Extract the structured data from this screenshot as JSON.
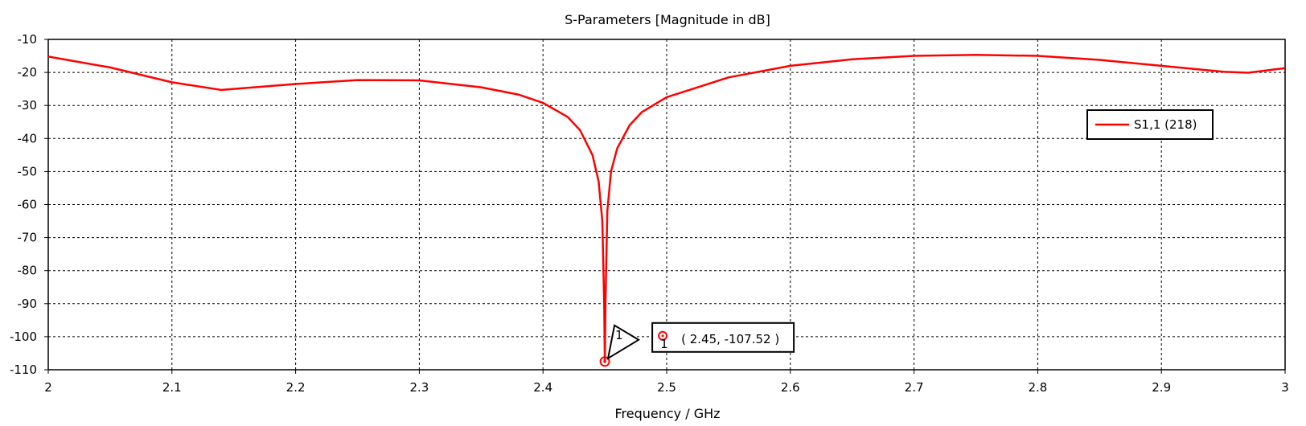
{
  "chart_data": {
    "type": "line",
    "title": "S-Parameters [Magnitude in dB]",
    "xlabel": "Frequency / GHz",
    "ylabel": "",
    "xlim": [
      2,
      3
    ],
    "ylim": [
      -110,
      -10
    ],
    "xticks": [
      "2",
      "2.1",
      "2.2",
      "2.3",
      "2.4",
      "2.5",
      "2.6",
      "2.7",
      "2.8",
      "2.9",
      "3"
    ],
    "yticks": [
      "-10",
      "-20",
      "-30",
      "-40",
      "-50",
      "-60",
      "-70",
      "-80",
      "-90",
      "-100",
      "-110"
    ],
    "grid": true,
    "legend_position": "right",
    "series": [
      {
        "name": "S1,1 (218)",
        "color": "#ff0000",
        "x": [
          2.0,
          2.05,
          2.1,
          2.14,
          2.2,
          2.25,
          2.3,
          2.35,
          2.38,
          2.4,
          2.42,
          2.43,
          2.44,
          2.445,
          2.448,
          2.4495,
          2.45,
          2.4505,
          2.452,
          2.455,
          2.46,
          2.47,
          2.48,
          2.5,
          2.55,
          2.6,
          2.65,
          2.7,
          2.75,
          2.8,
          2.85,
          2.9,
          2.95,
          2.97,
          3.0
        ],
        "y": [
          -15.2,
          -18.5,
          -23.0,
          -25.3,
          -23.5,
          -22.3,
          -22.4,
          -24.5,
          -26.7,
          -29.2,
          -33.5,
          -37.5,
          -45.0,
          -53.0,
          -65.0,
          -90.0,
          -107.52,
          -90.0,
          -62.0,
          -50.0,
          -43.0,
          -36.0,
          -32.0,
          -27.5,
          -21.5,
          -18.0,
          -16.0,
          -15.0,
          -14.7,
          -15.0,
          -16.2,
          -18.0,
          -19.8,
          -20.1,
          -18.7
        ]
      }
    ],
    "markers": [
      {
        "id": "1",
        "x": 2.45,
        "y": -107.52,
        "label": "( 2.45, -107.52 )"
      }
    ]
  }
}
